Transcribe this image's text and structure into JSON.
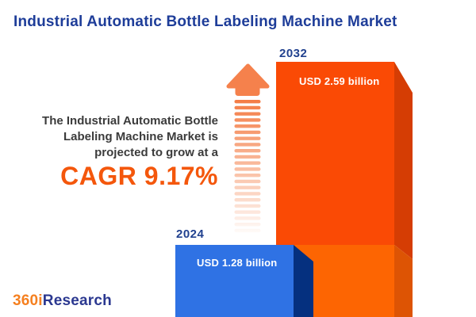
{
  "header": {
    "title": "Industrial Automatic Bottle Labeling Machine Market"
  },
  "promo": {
    "text": "The Industrial Automatic Bottle\nLabeling Machine Market is\nprojected to grow at a",
    "cagr": "CAGR 9.17%"
  },
  "chart": {
    "bars": [
      {
        "year": "2024",
        "value_label": "USD 1.28 billion"
      },
      {
        "year": "2032",
        "value_label": "USD 2.59 billion"
      }
    ]
  },
  "chart_data": {
    "type": "bar",
    "categories": [
      "2024",
      "2032"
    ],
    "values": [
      1.28,
      2.59
    ],
    "unit": "USD billion",
    "value_labels": [
      "USD 1.28 billion",
      "USD 2.59 billion"
    ],
    "title": "Industrial Automatic Bottle Labeling Machine Market",
    "annotations": [
      "The Industrial Automatic Bottle Labeling Machine Market is projected to grow at a CAGR 9.17%"
    ],
    "cagr_percent": 9.17,
    "bar_colors": [
      "#2F72E4",
      "#FA4A05"
    ],
    "legend": "none",
    "grid": false
  },
  "logo": {
    "part1": "360i",
    "part2": "Research"
  },
  "colors": {
    "title_navy": "#1E3D99",
    "year_navy": "#21418F",
    "cagr_orange": "#F4570C",
    "body_text": "#3B3B3B",
    "bar_2024_front": "#2F72E4",
    "bar_2024_side": "#05307F",
    "bar_2032_front_upper": "#FA4A05",
    "bar_2032_front_lower": "#FD6502",
    "bar_2032_side_upper": "#D53D04",
    "bar_2032_side_lower": "#DD5404",
    "arrow_orange": "#F5814C",
    "logo_orange": "#F58020",
    "logo_navy": "#2B3890",
    "value_label_white": "#FFFFFF"
  }
}
